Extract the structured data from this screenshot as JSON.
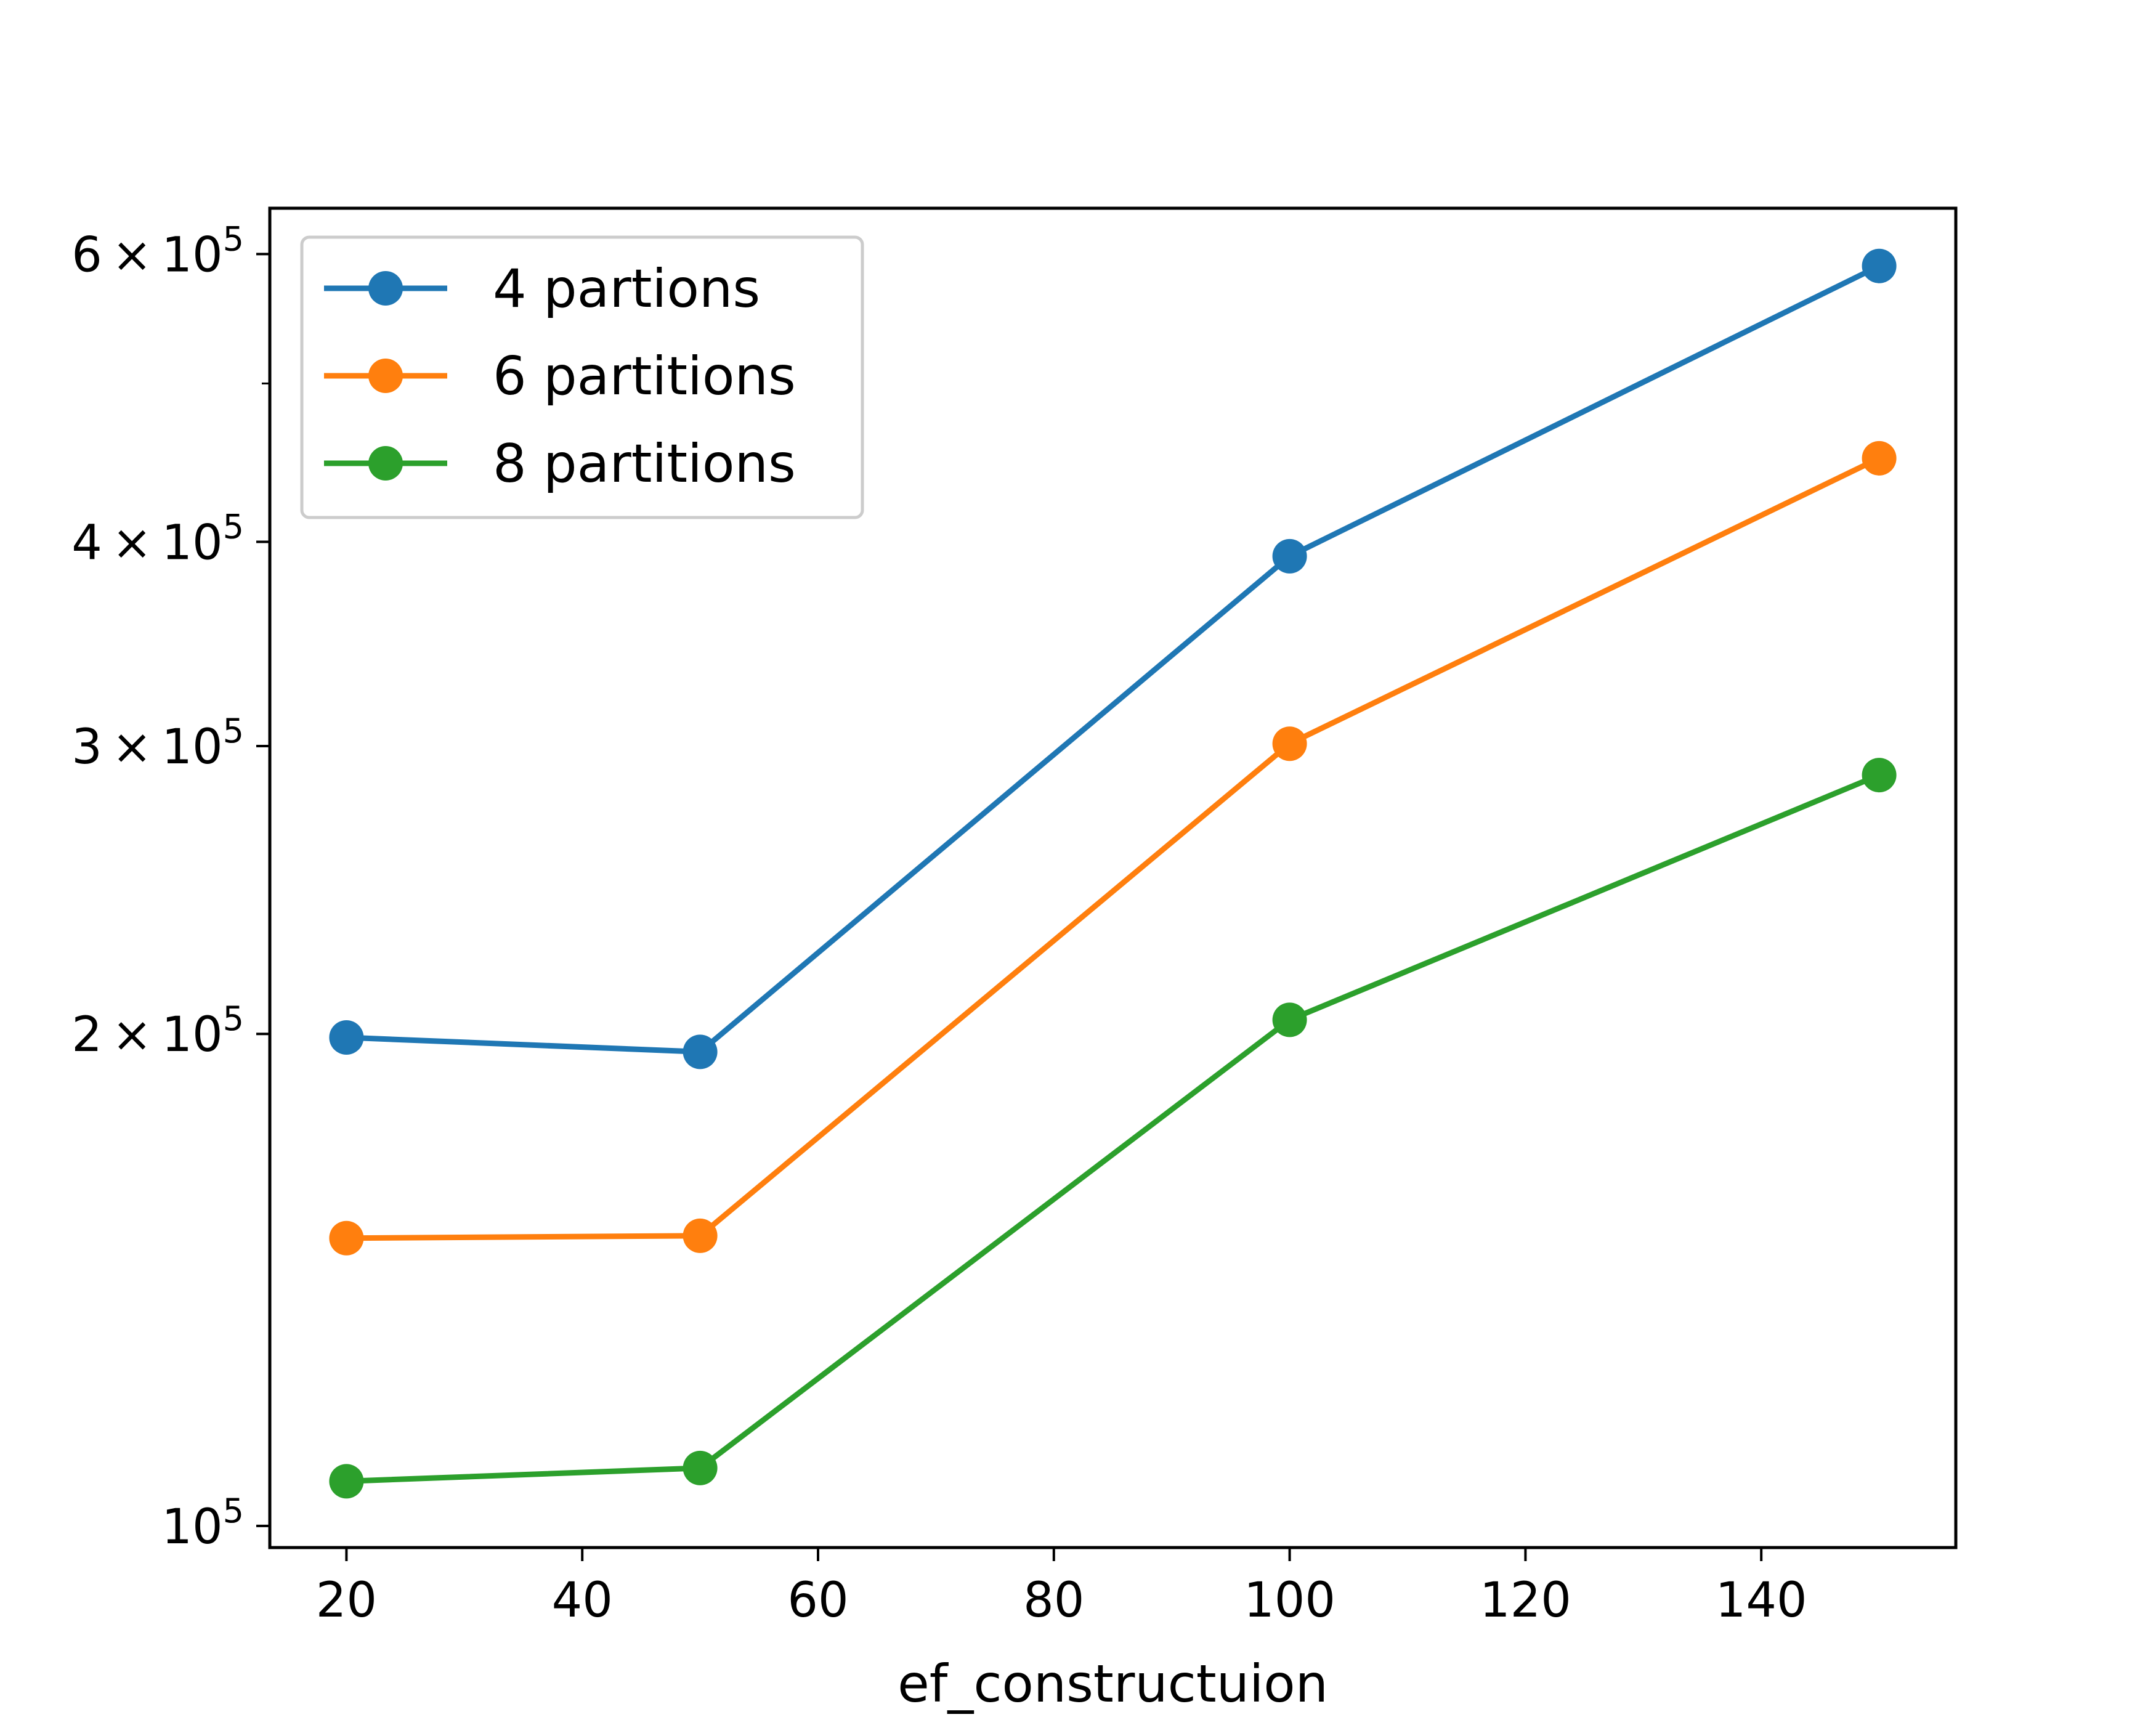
{
  "chart_data": {
    "type": "line",
    "xlabel": "ef_constructuion",
    "ylabel": "",
    "y_scale": "log",
    "xlim": [
      13.5,
      156.5
    ],
    "ylim": [
      97000,
      640000
    ],
    "x_ticks": [
      20,
      40,
      60,
      80,
      100,
      120,
      140
    ],
    "x_tick_labels": [
      "20",
      "40",
      "60",
      "80",
      "100",
      "120",
      "140"
    ],
    "y_ticks": [
      {
        "value": 100000,
        "mantissa": "",
        "base": "10",
        "exp": "5"
      },
      {
        "value": 200000,
        "mantissa": "2",
        "base": "10",
        "exp": "5"
      },
      {
        "value": 300000,
        "mantissa": "3",
        "base": "10",
        "exp": "5"
      },
      {
        "value": 400000,
        "mantissa": "4",
        "base": "10",
        "exp": "5"
      },
      {
        "value": 600000,
        "mantissa": "6",
        "base": "10",
        "exp": "5"
      }
    ],
    "y_minor_ticks": [
      500000
    ],
    "grid": false,
    "legend_position": "top-left",
    "x": [
      20,
      50,
      100,
      150
    ],
    "series": [
      {
        "name": "4 partions",
        "color": "#1f77b4",
        "values": [
          199000,
          195000,
          392000,
          590000
        ]
      },
      {
        "name": "6 partitions",
        "color": "#ff7f0e",
        "values": [
          150000,
          150500,
          301000,
          450000
        ]
      },
      {
        "name": "8 partitions",
        "color": "#2ca02c",
        "values": [
          106500,
          108500,
          204000,
          288000
        ]
      }
    ]
  }
}
